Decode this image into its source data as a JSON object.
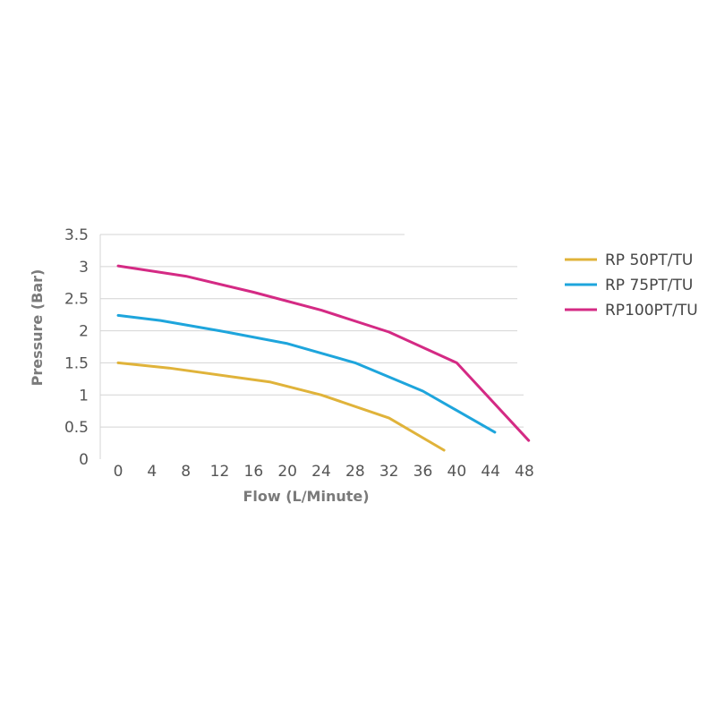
{
  "chart_data": {
    "type": "line",
    "title": "",
    "xlabel": "Flow (L/Minute)",
    "ylabel": "Pressure (Bar)",
    "x_ticks": [
      "0",
      "4",
      "8",
      "12",
      "16",
      "20",
      "24",
      "28",
      "32",
      "36",
      "40",
      "44",
      "48"
    ],
    "y_ticks": [
      "0",
      "0.5",
      "1",
      "1.5",
      "2",
      "2.5",
      "3",
      "3.5"
    ],
    "xlim": [
      0,
      48
    ],
    "ylim": [
      0,
      3.5
    ],
    "grid": "horizontal",
    "legend_position": "right",
    "series": [
      {
        "name": "RP 50PT/TU",
        "color": "#e0b33a",
        "points": [
          [
            0,
            1.5
          ],
          [
            6,
            1.42
          ],
          [
            18,
            1.2
          ],
          [
            24,
            1.0
          ],
          [
            32,
            0.64
          ],
          [
            38.5,
            0.14
          ]
        ]
      },
      {
        "name": "RP 75PT/TU",
        "color": "#1ea5dc",
        "points": [
          [
            0,
            2.24
          ],
          [
            5,
            2.16
          ],
          [
            12,
            2.0
          ],
          [
            20,
            1.8
          ],
          [
            28,
            1.5
          ],
          [
            36,
            1.06
          ],
          [
            44.5,
            0.42
          ]
        ]
      },
      {
        "name": "RP100PT/TU",
        "color": "#d42a84",
        "points": [
          [
            0,
            3.01
          ],
          [
            8,
            2.85
          ],
          [
            16,
            2.6
          ],
          [
            24,
            2.32
          ],
          [
            32,
            1.98
          ],
          [
            40,
            1.5
          ],
          [
            48.5,
            0.29
          ]
        ]
      }
    ]
  }
}
